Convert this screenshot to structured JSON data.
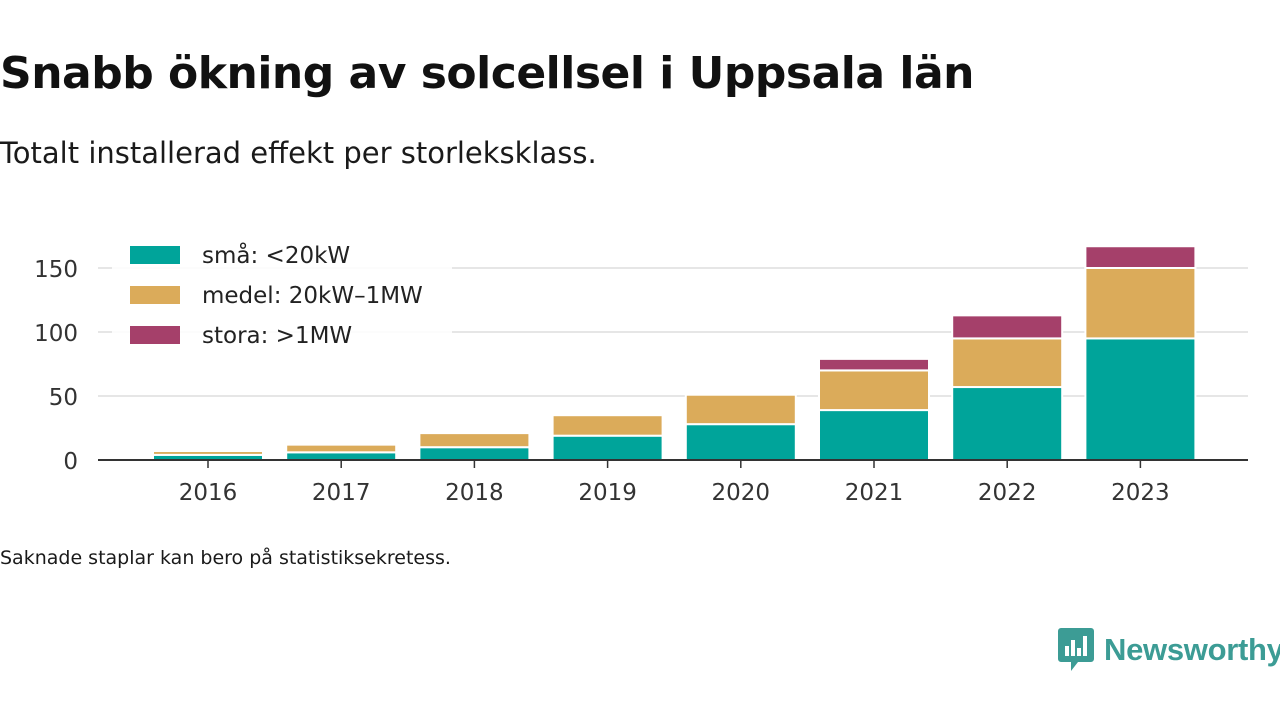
{
  "title": "Snabb ökning av solcellsel i Uppsala län",
  "subtitle": "Totalt installerad effekt per storleksklass.",
  "note": "Saknade staplar kan bero på statistiksekretess.",
  "brand": {
    "name": "Newsworthy",
    "logo_icon": "speech-bubble-bar-chart-icon",
    "color": "#3c9c95"
  },
  "chart_data": {
    "type": "bar",
    "stacked": true,
    "categories": [
      "2016",
      "2017",
      "2018",
      "2019",
      "2020",
      "2021",
      "2022",
      "2023"
    ],
    "series": [
      {
        "name": "små: <20kW",
        "color": "#00a49a",
        "values": [
          4,
          6,
          10,
          19,
          28,
          39,
          57,
          95
        ]
      },
      {
        "name": "medel: 20kW–1MW",
        "color": "#dbab5a",
        "values": [
          3,
          6,
          11,
          16,
          23,
          31,
          38,
          55
        ]
      },
      {
        "name": "stora: >1MW",
        "color": "#a5406a",
        "values": [
          0,
          0,
          0,
          0,
          0,
          9,
          18,
          17
        ]
      }
    ],
    "ylim": [
      0,
      170
    ],
    "yticks": [
      0,
      50,
      100,
      150
    ],
    "grid": true,
    "legend_position": "top-left"
  }
}
